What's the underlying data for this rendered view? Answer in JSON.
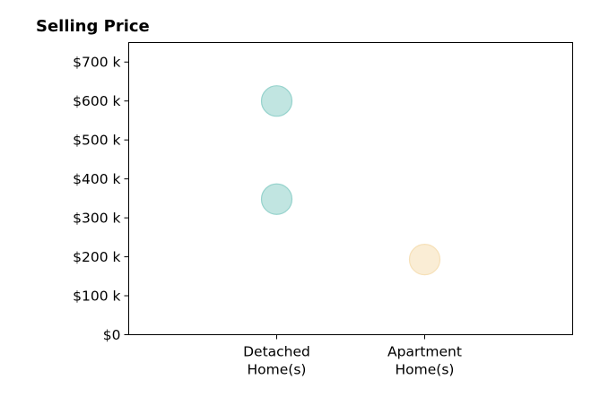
{
  "chart_data": {
    "type": "scatter",
    "title": "Selling Price",
    "xlabel": "",
    "ylabel": "",
    "categories": [
      [
        "Detached",
        "Home(s)"
      ],
      [
        "Apartment",
        "Home(s)"
      ]
    ],
    "xlim": [
      -1,
      2
    ],
    "ylim": [
      0,
      750000
    ],
    "yticks": [
      0,
      100000,
      200000,
      300000,
      400000,
      500000,
      600000,
      700000
    ],
    "ytick_labels": [
      "$0",
      "$100 k",
      "$200 k",
      "$300 k",
      "$400 k",
      "$500 k",
      "$600 k",
      "$700 k"
    ],
    "grid": false,
    "points": [
      {
        "category_index": 0,
        "y": 600000,
        "color": "#8ecfc9"
      },
      {
        "category_index": 0,
        "y": 348000,
        "color": "#8ecfc9"
      },
      {
        "category_index": 1,
        "y": 193000,
        "color": "#f5deb3"
      }
    ],
    "marker_opacity": 0.55,
    "colors": {
      "detached": "#8ecfc9",
      "apartment": "#f5deb3"
    }
  }
}
